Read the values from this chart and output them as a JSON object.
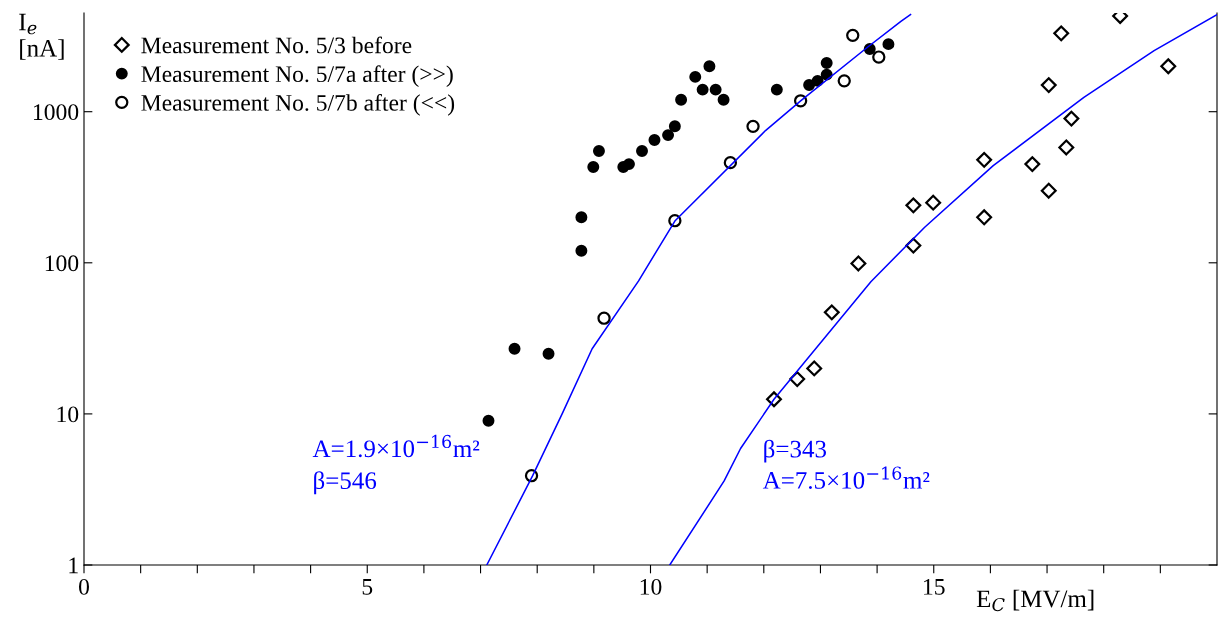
{
  "chart_data": {
    "type": "scatter",
    "xlabel": "E$_{C}$ [MV/m]",
    "ylabel": "I$_{e}$\n[nA]",
    "log": "y",
    "xlim": [
      0,
      20
    ],
    "ylim": [
      1,
      4500
    ],
    "xticks": [
      0,
      {
        "value": 1,
        "label": null
      },
      {
        "value": 2,
        "label": null
      },
      {
        "value": 3,
        "label": null
      },
      {
        "value": 4,
        "label": null
      },
      5,
      {
        "value": 6,
        "label": null
      },
      {
        "value": 7,
        "label": null
      },
      {
        "value": 8,
        "label": null
      },
      {
        "value": 9,
        "label": null
      },
      10,
      {
        "value": 11,
        "label": null
      },
      {
        "value": 12,
        "label": null
      },
      {
        "value": 13,
        "label": null
      },
      {
        "value": 14,
        "label": null
      },
      15,
      {
        "value": 16,
        "label": null
      },
      {
        "value": 17,
        "label": null
      },
      {
        "value": 18,
        "label": null
      },
      {
        "value": 19,
        "label": null
      }
    ],
    "yticks": [
      1,
      10,
      100,
      1000
    ],
    "grid": false,
    "legend": "top left",
    "series": [
      {
        "name": "Measurement No. 5/3 before",
        "marker": "diamond",
        "color": "#ffffff",
        "x": [
          12.18,
          12.59,
          12.89,
          13.2,
          13.67,
          14.64,
          14.64,
          14.99,
          15.89,
          15.89,
          16.74,
          17.03,
          17.34,
          17.43,
          17.03,
          17.25,
          18.29,
          19.14
        ],
        "values": [
          12.5,
          17,
          20,
          47,
          99,
          130,
          240,
          250,
          480,
          200,
          450,
          300,
          580,
          900,
          1500,
          3300,
          4300,
          2000
        ]
      },
      {
        "name": "Measurement No. 5/7a after (>>)",
        "marker": "circle",
        "color": "#000000",
        "x": [
          7.14,
          7.6,
          8.2,
          8.78,
          8.78,
          8.99,
          9.09,
          9.52,
          9.62,
          9.85,
          10.07,
          10.31,
          10.43,
          10.54,
          10.79,
          10.92,
          11.04,
          11.15,
          11.29,
          12.23,
          12.8,
          12.95,
          13.11,
          13.11,
          13.87,
          14.2
        ],
        "values": [
          9,
          27,
          25,
          200,
          120,
          430,
          550,
          430,
          450,
          550,
          650,
          700,
          800,
          1200,
          1700,
          1400,
          2000,
          1400,
          1200,
          1400,
          1500,
          1600,
          1760,
          2100,
          2600,
          2800
        ]
      },
      {
        "name": "Measurement No. 5/7b after (<<)",
        "marker": "circle",
        "color": "#ffffff",
        "x": [
          7.9,
          9.18,
          10.43,
          11.41,
          11.81,
          12.65,
          13.42,
          13.57,
          14.03
        ],
        "values": [
          3.9,
          43,
          190,
          460,
          800,
          1180,
          1600,
          3200,
          2300
        ]
      },
      {
        "type": "line",
        "marker": "none",
        "line_style": "solid",
        "color": "#0000ff",
        "x": [
          7.11,
          7.92,
          8.44,
          8.97,
          9.79,
          10.43,
          12.03,
          12.65,
          13.83,
          14.42,
          14.59
        ],
        "values": [
          1,
          3.9,
          10,
          27,
          76,
          189,
          750,
          1180,
          2670,
          3960,
          4390
        ]
      },
      {
        "type": "line",
        "marker": "none",
        "line_style": "solid",
        "color": "#0000ff",
        "x": [
          10.34,
          11.3,
          11.59,
          12.18,
          13.89,
          14.84,
          16.05,
          17.65,
          18.89,
          20.0
        ],
        "values": [
          1,
          3.6,
          5.9,
          12.5,
          75,
          172,
          440,
          1245,
          2535,
          4385
        ]
      }
    ],
    "annotations": [
      "A=1.9×10$^{−16}$m²\nβ=546",
      "β=343\nA=7.5×10$^{−16}$m²"
    ]
  }
}
